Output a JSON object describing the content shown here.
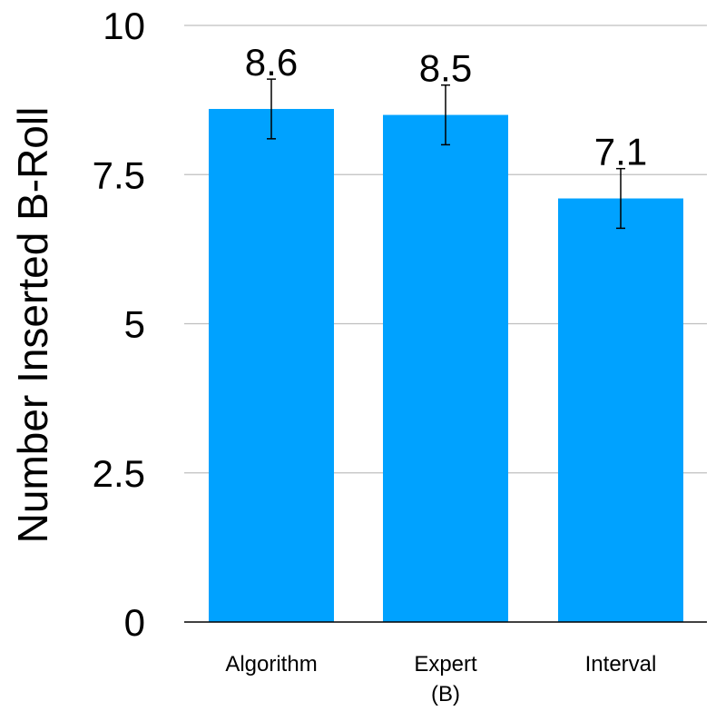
{
  "chart_data": {
    "type": "bar",
    "title": "",
    "xlabel": "",
    "ylabel": "Number Inserted B-Roll",
    "categories": [
      [
        "Algorithm"
      ],
      [
        "Expert",
        "(B)"
      ],
      [
        "Interval"
      ]
    ],
    "values": [
      8.6,
      8.5,
      7.1
    ],
    "value_labels": [
      "8.6",
      "8.5",
      "7.1"
    ],
    "error_bars": [
      {
        "low": 8.1,
        "high": 9.1
      },
      {
        "low": 8.0,
        "high": 9.0
      },
      {
        "low": 6.6,
        "high": 7.6
      }
    ],
    "ylim": [
      0,
      10
    ],
    "yticks": [
      0,
      2.5,
      5,
      7.5,
      10
    ],
    "ytick_labels": [
      "0",
      "2.5",
      "5",
      "7.5",
      "10"
    ],
    "grid": true,
    "legend": "none",
    "colors": {
      "bar": "#00A2FF",
      "grid": "#bfbfbf",
      "axis": "#000000",
      "error_bar": "#000000"
    }
  }
}
